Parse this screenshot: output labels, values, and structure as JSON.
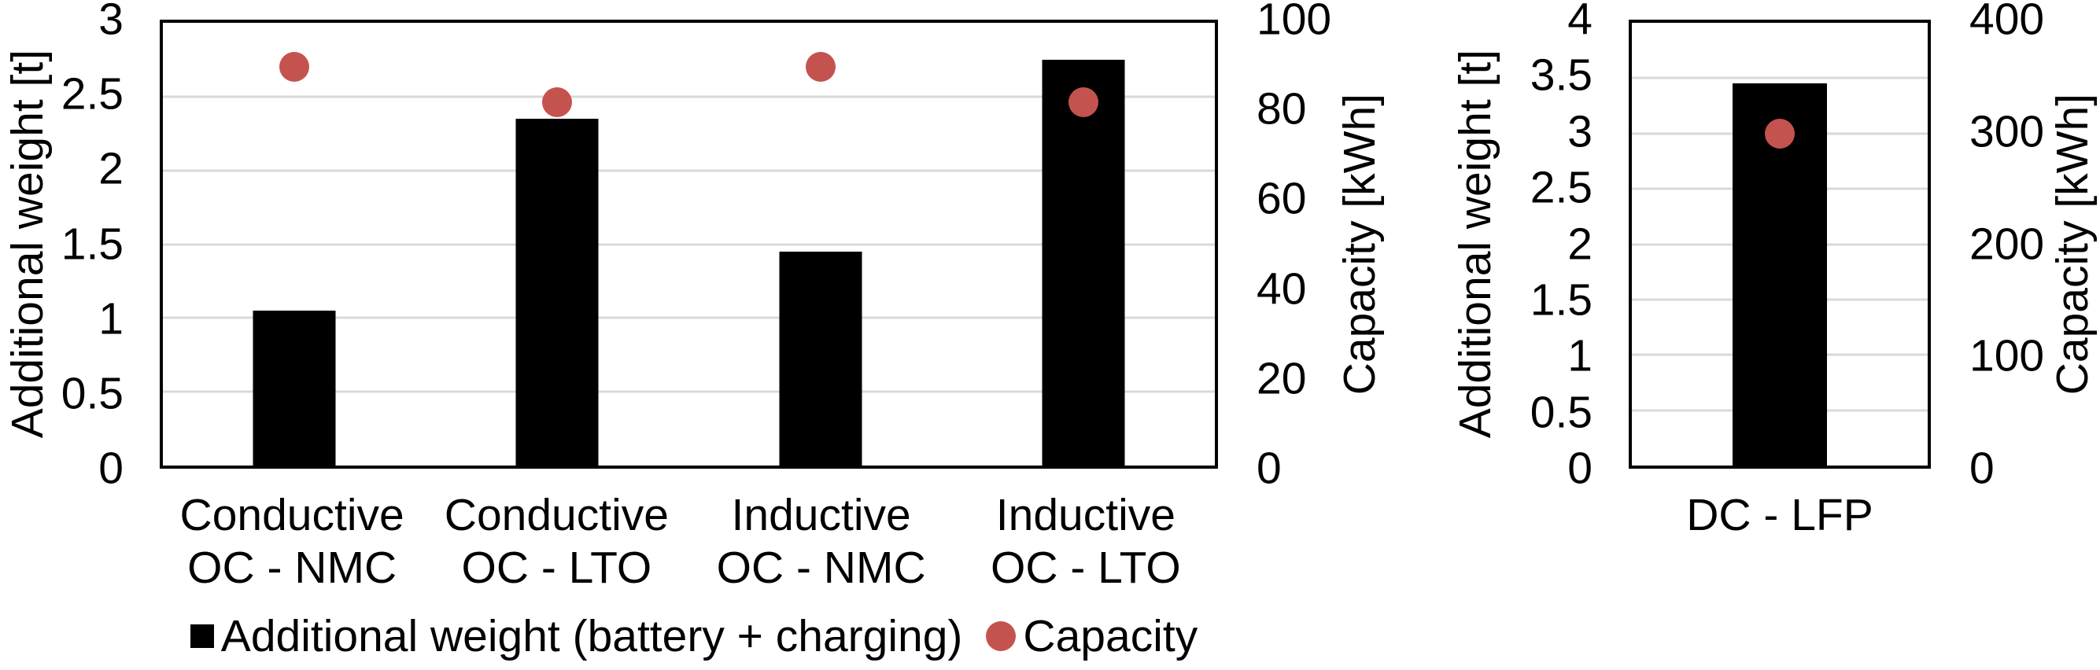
{
  "colors": {
    "bar": "#000000",
    "dot": "#C4534F",
    "gridline": "#D9D9D9",
    "axis_border": "#000000"
  },
  "legend": {
    "items": [
      {
        "label": "Additional weight (battery + charging)",
        "marker": "square",
        "color": "#000000"
      },
      {
        "label": "Capacity",
        "marker": "circle",
        "color": "#C4534F"
      }
    ],
    "position": "bottom"
  },
  "chart_data": [
    {
      "type": "bar+scatter",
      "name": "opportunity-charging-chart",
      "grid": "horizontal",
      "categories": [
        {
          "label": "Conductive OC - NMC",
          "line1": "Conductive",
          "line2": "OC - NMC"
        },
        {
          "label": "Conductive OC - LTO",
          "line1": "Conductive",
          "line2": "OC - LTO"
        },
        {
          "label": "Inductive OC - NMC",
          "line1": "Inductive",
          "line2": "OC - NMC"
        },
        {
          "label": "Inductive OC - LTO",
          "line1": "Inductive",
          "line2": "OC - LTO"
        }
      ],
      "y_left": {
        "title": "Additional weight [t]",
        "min": 0,
        "max": 3,
        "ticks": [
          3,
          2.5,
          2,
          1.5,
          1,
          0.5,
          0
        ]
      },
      "y_right": {
        "title": "Capacity [kWh]",
        "min": 0,
        "max": 100,
        "ticks": [
          100,
          80,
          60,
          40,
          20,
          0
        ]
      },
      "series": [
        {
          "name": "Additional weight (battery + charging)",
          "type": "bar",
          "axis": "left",
          "values": [
            1.05,
            2.35,
            1.45,
            2.75
          ]
        },
        {
          "name": "Capacity",
          "type": "scatter",
          "axis": "right",
          "values": [
            90,
            82,
            90,
            82
          ]
        }
      ]
    },
    {
      "type": "bar+scatter",
      "name": "depot-charging-chart",
      "grid": "horizontal",
      "categories": [
        {
          "label": "DC - LFP",
          "line1": "DC - LFP",
          "line2": ""
        }
      ],
      "y_left": {
        "title": "Additional weight [t]",
        "min": 0,
        "max": 4,
        "ticks": [
          4,
          3.5,
          3,
          2.5,
          2,
          1.5,
          1,
          0.5,
          0
        ]
      },
      "y_right": {
        "title": "Capacity [kWh]",
        "min": 0,
        "max": 400,
        "ticks": [
          400,
          300,
          200,
          100,
          0
        ]
      },
      "series": [
        {
          "name": "Additional weight (battery + charging)",
          "type": "bar",
          "axis": "left",
          "values": [
            3.45
          ]
        },
        {
          "name": "Capacity",
          "type": "scatter",
          "axis": "right",
          "values": [
            300
          ]
        }
      ]
    }
  ]
}
